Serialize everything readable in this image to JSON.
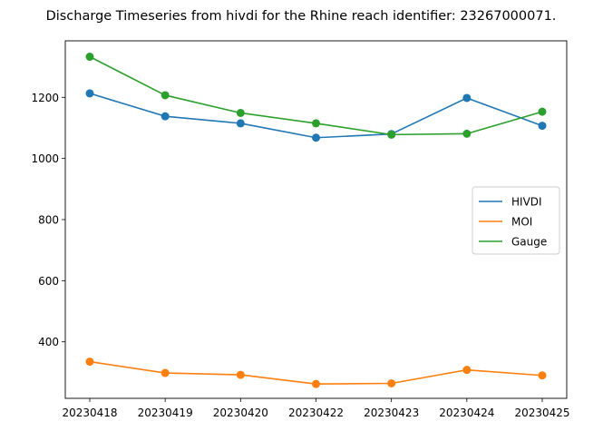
{
  "chart_data": {
    "type": "line",
    "title": "Discharge Timeseries from hivdi for the Rhine reach identifier: 23267000071.",
    "xlabel": "",
    "ylabel": "",
    "categories": [
      "20230418",
      "20230419",
      "20230420",
      "20230422",
      "20230423",
      "20230424",
      "20230425"
    ],
    "ylim": [
      215,
      1385
    ],
    "yticks": [
      400,
      600,
      800,
      1000,
      1200
    ],
    "grid": false,
    "markers": true,
    "legend_position": "center-right",
    "series": [
      {
        "name": "HIVDI",
        "color": "#1f77b4",
        "values": [
          1213,
          1138,
          1115,
          1068,
          1080,
          1198,
          1107
        ]
      },
      {
        "name": "MOI",
        "color": "#ff7f0e",
        "values": [
          335,
          298,
          292,
          262,
          264,
          308,
          290
        ]
      },
      {
        "name": "Gauge",
        "color": "#2ca02c",
        "values": [
          1333,
          1207,
          1149,
          1115,
          1078,
          1081,
          1153
        ]
      }
    ]
  }
}
